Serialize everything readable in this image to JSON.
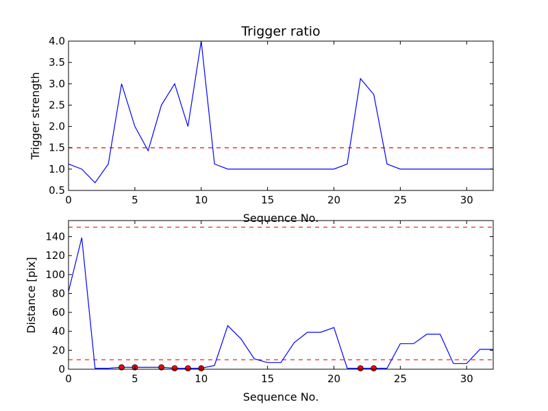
{
  "chart_data": [
    {
      "type": "line",
      "title": "Trigger ratio",
      "xlabel": "Sequence No.",
      "ylabel": "Trigger strength",
      "xlim": [
        0,
        32
      ],
      "ylim": [
        0.5,
        4.0
      ],
      "xticks": [
        0,
        5,
        10,
        15,
        20,
        25,
        30
      ],
      "yticks": [
        0.5,
        1.0,
        1.5,
        2.0,
        2.5,
        3.0,
        3.5,
        4.0
      ],
      "x": [
        0,
        1,
        2,
        3,
        4,
        5,
        6,
        7,
        8,
        9,
        10,
        11,
        12,
        13,
        14,
        15,
        16,
        17,
        18,
        19,
        20,
        21,
        22,
        23,
        24,
        25,
        26,
        27,
        28,
        29,
        30,
        31,
        32
      ],
      "series": [
        {
          "color": "#0000ff",
          "values": [
            1.12,
            1.0,
            0.68,
            1.12,
            3.0,
            2.0,
            1.43,
            2.5,
            3.0,
            2.0,
            4.0,
            1.12,
            1.0,
            1.0,
            1.0,
            1.0,
            1.0,
            1.0,
            1.0,
            1.0,
            1.0,
            1.12,
            3.12,
            2.75,
            1.12,
            1.0,
            1.0,
            1.0,
            1.0,
            1.0,
            1.0,
            1.0,
            1.0
          ]
        }
      ],
      "reference_lines": [
        {
          "y": 1.5,
          "color": "#ff0000",
          "style": "dashed"
        }
      ],
      "markers": []
    },
    {
      "type": "line",
      "title": "",
      "xlabel": "Sequence No.",
      "ylabel": "Distance [pix]",
      "xlim": [
        0,
        32
      ],
      "ylim": [
        0,
        157
      ],
      "xticks": [
        0,
        5,
        10,
        15,
        20,
        25,
        30
      ],
      "yticks": [
        0,
        20,
        40,
        60,
        80,
        100,
        120,
        140
      ],
      "x": [
        0,
        1,
        2,
        3,
        4,
        5,
        6,
        7,
        8,
        9,
        10,
        11,
        12,
        13,
        14,
        15,
        16,
        17,
        18,
        19,
        20,
        21,
        22,
        23,
        24,
        25,
        26,
        27,
        28,
        29,
        30,
        31,
        32
      ],
      "series": [
        {
          "color": "#0000ff",
          "values": [
            82,
            139,
            1,
            1,
            2,
            2,
            2,
            2,
            1,
            1,
            1,
            4,
            46,
            32,
            11,
            7,
            7,
            28,
            39,
            39,
            44,
            1,
            1,
            1,
            1,
            27,
            27,
            37,
            37,
            6,
            6,
            21,
            21
          ]
        }
      ],
      "reference_lines": [
        {
          "y": 150,
          "color": "#ff0000",
          "style": "dashed"
        },
        {
          "y": 10,
          "color": "#ff0000",
          "style": "dashed"
        }
      ],
      "markers": [
        {
          "x": 4,
          "y": 2,
          "color": "#ff0000"
        },
        {
          "x": 5,
          "y": 2,
          "color": "#ff0000"
        },
        {
          "x": 7,
          "y": 2,
          "color": "#ff0000"
        },
        {
          "x": 8,
          "y": 1,
          "color": "#ff0000"
        },
        {
          "x": 9,
          "y": 1,
          "color": "#ff0000"
        },
        {
          "x": 10,
          "y": 1,
          "color": "#ff0000"
        },
        {
          "x": 22,
          "y": 1,
          "color": "#ff0000"
        },
        {
          "x": 23,
          "y": 1,
          "color": "#ff0000"
        }
      ]
    }
  ]
}
